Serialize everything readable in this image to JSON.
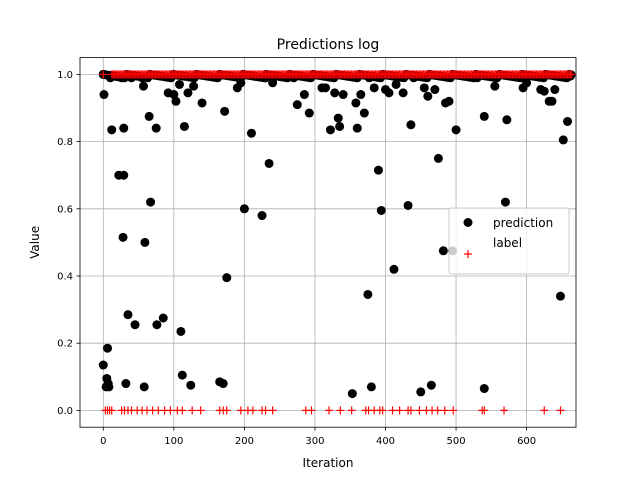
{
  "chart_data": {
    "type": "scatter",
    "title": "Predictions log",
    "xlabel": "Iteration",
    "ylabel": "Value",
    "xlim": [
      -33,
      670
    ],
    "ylim": [
      -0.05,
      1.05
    ],
    "x_ticks": [
      0,
      100,
      200,
      300,
      400,
      500,
      600
    ],
    "y_ticks": [
      0.0,
      0.2,
      0.4,
      0.6,
      0.8,
      1.0
    ],
    "x_tick_labels": [
      "0",
      "100",
      "200",
      "300",
      "400",
      "500",
      "600"
    ],
    "y_tick_labels": [
      "0.0",
      "0.2",
      "0.4",
      "0.6",
      "0.8",
      "1.0"
    ],
    "grid": true,
    "legend": "center-right",
    "series": [
      {
        "name": "prediction",
        "marker": "circle",
        "color": "#000000",
        "points": [
          [
            0,
            1.0
          ],
          [
            1,
            0.94
          ],
          [
            0,
            0.135
          ],
          [
            4,
            0.07
          ],
          [
            5,
            0.095
          ],
          [
            6,
            0.185
          ],
          [
            7,
            0.08
          ],
          [
            8,
            0.07
          ],
          [
            10,
            0.99
          ],
          [
            12,
            0.835
          ],
          [
            18,
            0.995
          ],
          [
            22,
            0.7
          ],
          [
            26,
            0.99
          ],
          [
            28,
            0.515
          ],
          [
            29,
            0.7
          ],
          [
            29,
            0.84
          ],
          [
            32,
            0.08
          ],
          [
            35,
            0.285
          ],
          [
            40,
            0.99
          ],
          [
            45,
            0.255
          ],
          [
            55,
            0.99
          ],
          [
            57,
            0.965
          ],
          [
            58,
            0.07
          ],
          [
            59,
            0.5
          ],
          [
            65,
            0.875
          ],
          [
            67,
            0.62
          ],
          [
            75,
            0.84
          ],
          [
            76,
            0.255
          ],
          [
            85,
            0.275
          ],
          [
            92,
            0.945
          ],
          [
            100,
            0.94
          ],
          [
            103,
            0.92
          ],
          [
            108,
            0.97
          ],
          [
            110,
            0.235
          ],
          [
            112,
            0.105
          ],
          [
            115,
            0.845
          ],
          [
            120,
            0.945
          ],
          [
            124,
            0.075
          ],
          [
            128,
            0.965
          ],
          [
            140,
            0.915
          ],
          [
            165,
            0.085
          ],
          [
            170,
            0.08
          ],
          [
            172,
            0.89
          ],
          [
            175,
            0.395
          ],
          [
            190,
            0.96
          ],
          [
            195,
            0.975
          ],
          [
            200,
            0.6
          ],
          [
            210,
            0.825
          ],
          [
            225,
            0.58
          ],
          [
            230,
            0.99
          ],
          [
            235,
            0.735
          ],
          [
            240,
            0.975
          ],
          [
            270,
            0.99
          ],
          [
            275,
            0.91
          ],
          [
            285,
            0.94
          ],
          [
            292,
            0.885
          ],
          [
            310,
            0.96
          ],
          [
            315,
            0.96
          ],
          [
            322,
            0.835
          ],
          [
            328,
            0.945
          ],
          [
            333,
            0.87
          ],
          [
            335,
            0.845
          ],
          [
            340,
            0.94
          ],
          [
            353,
            0.05
          ],
          [
            358,
            0.915
          ],
          [
            360,
            0.84
          ],
          [
            365,
            0.94
          ],
          [
            370,
            0.885
          ],
          [
            375,
            0.345
          ],
          [
            377,
            0.99
          ],
          [
            380,
            0.07
          ],
          [
            384,
            0.96
          ],
          [
            390,
            0.715
          ],
          [
            394,
            0.595
          ],
          [
            400,
            0.955
          ],
          [
            405,
            0.945
          ],
          [
            412,
            0.42
          ],
          [
            415,
            0.97
          ],
          [
            425,
            0.945
          ],
          [
            432,
            0.61
          ],
          [
            436,
            0.85
          ],
          [
            440,
            0.99
          ],
          [
            450,
            0.055
          ],
          [
            455,
            0.96
          ],
          [
            460,
            0.935
          ],
          [
            465,
            0.075
          ],
          [
            470,
            0.955
          ],
          [
            475,
            0.75
          ],
          [
            482,
            0.475
          ],
          [
            485,
            0.915
          ],
          [
            490,
            0.92
          ],
          [
            495,
            0.475
          ],
          [
            500,
            0.835
          ],
          [
            530,
            0.99
          ],
          [
            540,
            0.065
          ],
          [
            540,
            0.875
          ],
          [
            555,
            0.965
          ],
          [
            570,
            0.62
          ],
          [
            572,
            0.865
          ],
          [
            595,
            0.96
          ],
          [
            600,
            0.975
          ],
          [
            620,
            0.955
          ],
          [
            625,
            0.95
          ],
          [
            632,
            0.92
          ],
          [
            636,
            0.92
          ],
          [
            640,
            0.955
          ],
          [
            648,
            0.34
          ],
          [
            652,
            0.805
          ],
          [
            658,
            0.86
          ],
          [
            662,
            0.995
          ]
        ]
      },
      {
        "name": "label",
        "marker": "plus",
        "color": "#ff0000",
        "points": [
          [
            0,
            1.0
          ],
          [
            3,
            0.0
          ],
          [
            6,
            0.0
          ],
          [
            9,
            0.0
          ],
          [
            12,
            0.0
          ],
          [
            26,
            0.0
          ],
          [
            30,
            0.0
          ],
          [
            35,
            0.0
          ],
          [
            40,
            0.0
          ],
          [
            48,
            0.0
          ],
          [
            55,
            0.0
          ],
          [
            62,
            0.0
          ],
          [
            70,
            0.0
          ],
          [
            78,
            0.0
          ],
          [
            87,
            0.0
          ],
          [
            95,
            0.0
          ],
          [
            105,
            0.0
          ],
          [
            112,
            0.0
          ],
          [
            126,
            0.0
          ],
          [
            138,
            0.0
          ],
          [
            165,
            0.0
          ],
          [
            170,
            0.0
          ],
          [
            175,
            0.0
          ],
          [
            195,
            0.0
          ],
          [
            205,
            0.0
          ],
          [
            212,
            0.0
          ],
          [
            225,
            0.0
          ],
          [
            230,
            0.0
          ],
          [
            240,
            0.0
          ],
          [
            287,
            0.0
          ],
          [
            295,
            0.0
          ],
          [
            320,
            0.0
          ],
          [
            336,
            0.0
          ],
          [
            352,
            0.0
          ],
          [
            372,
            0.0
          ],
          [
            376,
            0.0
          ],
          [
            384,
            0.0
          ],
          [
            392,
            0.0
          ],
          [
            396,
            0.0
          ],
          [
            410,
            0.0
          ],
          [
            420,
            0.0
          ],
          [
            432,
            0.0
          ],
          [
            436,
            0.0
          ],
          [
            448,
            0.0
          ],
          [
            458,
            0.0
          ],
          [
            466,
            0.0
          ],
          [
            474,
            0.0
          ],
          [
            484,
            0.0
          ],
          [
            496,
            0.0
          ],
          [
            537,
            0.0
          ],
          [
            540,
            0.0
          ],
          [
            568,
            0.0
          ],
          [
            625,
            0.0
          ],
          [
            648,
            0.0
          ]
        ]
      }
    ]
  }
}
